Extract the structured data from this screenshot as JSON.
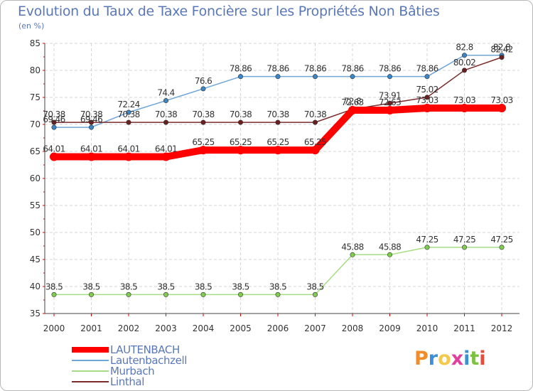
{
  "chart_data": {
    "type": "line",
    "title": "Evolution du Taux de Taxe Foncière sur les Propriétés Non Bâties",
    "ylabel": "(en %)",
    "xlabel": "",
    "ylim": [
      35,
      85
    ],
    "yticks": [
      "35",
      "40",
      "45",
      "50",
      "55",
      "60",
      "65",
      "70",
      "75",
      "80",
      "85"
    ],
    "categories": [
      "2000",
      "2001",
      "2002",
      "2003",
      "2004",
      "2005",
      "2006",
      "2007",
      "2008",
      "2009",
      "2010",
      "2011",
      "2012"
    ],
    "grid": true,
    "series": [
      {
        "name": "LAUTENBACH",
        "color": "#ff0000",
        "marker": "#ff0000",
        "values": [
          64.01,
          64.01,
          64.01,
          64.01,
          65.25,
          65.25,
          65.25,
          65.25,
          72.63,
          72.63,
          73.03,
          73.03,
          73.03
        ],
        "labels": [
          "64.01",
          "64.01",
          "64.01",
          "64.01",
          "65.25",
          "65.25",
          "65.25",
          "65.25",
          "72.63",
          "72.63",
          "73.03",
          "73.03",
          "73.03"
        ]
      },
      {
        "name": "Lautenbachzell",
        "color": "#6fa6d8",
        "marker": "#3d86c6",
        "values": [
          69.46,
          69.46,
          72.24,
          74.4,
          76.6,
          78.86,
          78.86,
          78.86,
          78.86,
          78.86,
          78.86,
          82.8,
          82.8
        ],
        "labels": [
          "69.46",
          "69.46",
          "72.24",
          "74.4",
          "76.6",
          "78.86",
          "78.86",
          "78.86",
          "78.86",
          "78.86",
          "78.86",
          "82.8",
          "82.8"
        ]
      },
      {
        "name": "Murbach",
        "color": "#a6dd84",
        "marker": "#7fcc4f",
        "values": [
          38.5,
          38.5,
          38.5,
          38.5,
          38.5,
          38.5,
          38.5,
          38.5,
          45.88,
          45.88,
          47.25,
          47.25,
          47.25
        ],
        "labels": [
          "38.5",
          "38.5",
          "38.5",
          "38.5",
          "38.5",
          "38.5",
          "38.5",
          "38.5",
          "45.88",
          "45.88",
          "47.25",
          "47.25",
          "47.25"
        ]
      },
      {
        "name": "Linthal",
        "color": "#7a2c2c",
        "marker": "#6b1f1f",
        "values": [
          70.38,
          70.38,
          70.38,
          70.38,
          70.38,
          70.38,
          70.38,
          70.38,
          72.8,
          73.91,
          75.02,
          80.02,
          82.42
        ],
        "labels": [
          "70.38",
          "70.38",
          "70.38",
          "70.38",
          "70.38",
          "70.38",
          "70.38",
          "70.38",
          "72.8",
          "73.91",
          "75.02",
          "80.02",
          "82.42"
        ]
      }
    ]
  },
  "logo": {
    "text": "Proxiti",
    "colors": [
      "#f28c28",
      "#3a8fd6",
      "#f2c94c",
      "#e0409b",
      "#3a8fd6",
      "#7cc142",
      "#e84a3c"
    ]
  }
}
